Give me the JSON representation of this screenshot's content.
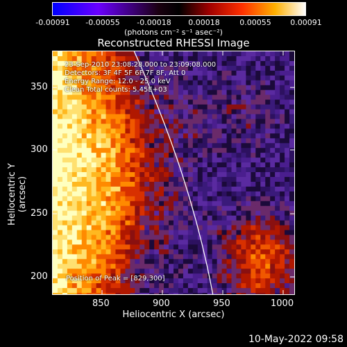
{
  "colorbar": {
    "tick_labels": [
      "-0.00091",
      "-0.00055",
      "-0.00018",
      "0.00018",
      "0.00055",
      "0.00091"
    ],
    "unit_text": "(photons cm⁻² s⁻¹ asec⁻²)",
    "colors": [
      "#0000ff",
      "#7a00ff",
      "#2a0030",
      "#a00000",
      "#ff4000",
      "#ffa000",
      "#ffff80",
      "#ffffff"
    ]
  },
  "title": "Reconstructed RHESSI Image",
  "info": {
    "time_range": "23-Sep-2010 23:08:28.000 to 23:09:08.000",
    "detectors": "Detectors: 3F 4F 5F 6F 7F 8F, Att 0",
    "energy": "Energy Range: 12.0 - 25.0 keV",
    "clean": "Clean     Total counts: 5.45E+03"
  },
  "axes": {
    "x_label": "Heliocentric X (arcsec)",
    "y_label": "Heliocentric Y (arcsec)",
    "x_ticks": [
      "850",
      "900",
      "950",
      "1000"
    ],
    "y_ticks": [
      "350",
      "300",
      "250",
      "200"
    ]
  },
  "peak_text": "Position of Peak = [829,300]",
  "timestamp": "10-May-2022 09:58"
}
